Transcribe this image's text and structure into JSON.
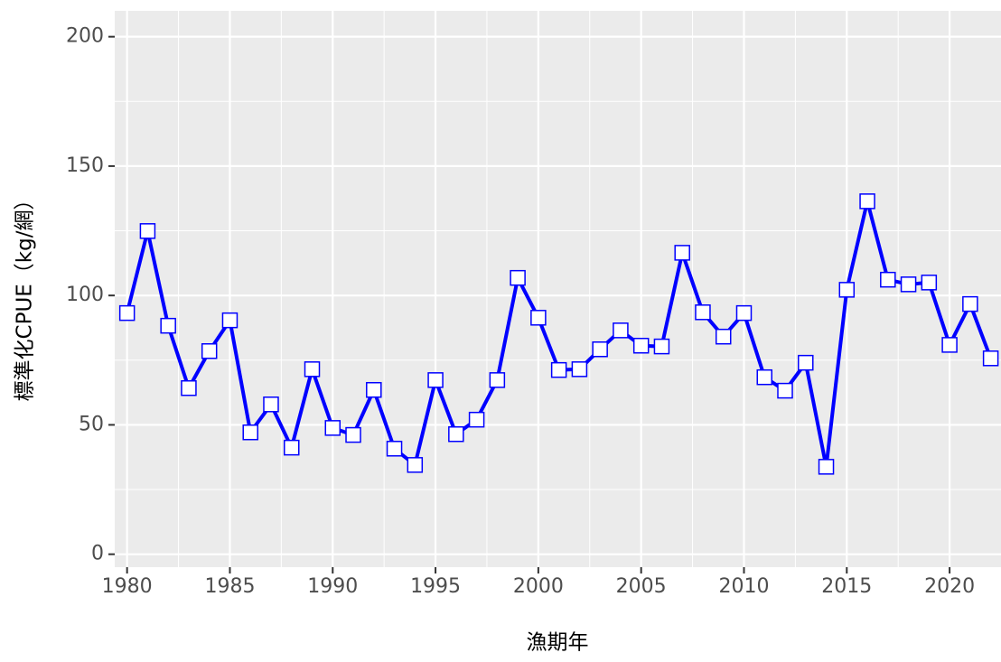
{
  "chart_data": {
    "type": "line",
    "x_label": "漁期年",
    "y_label": "標準化CPUE（kg/網）",
    "x": [
      1980,
      1981,
      1982,
      1983,
      1984,
      1985,
      1986,
      1987,
      1988,
      1989,
      1990,
      1991,
      1992,
      1993,
      1994,
      1995,
      1996,
      1997,
      1998,
      1999,
      2000,
      2001,
      2002,
      2003,
      2004,
      2005,
      2006,
      2007,
      2008,
      2009,
      2010,
      2011,
      2012,
      2013,
      2014,
      2015,
      2016,
      2017,
      2018,
      2019,
      2020,
      2021,
      2022
    ],
    "series": [
      {
        "color": "#0000ff",
        "marker_fill": "#ffffff",
        "values": [
          93.2,
          124.9,
          88.3,
          64.2,
          78.5,
          90.4,
          47.1,
          57.9,
          41.2,
          71.5,
          48.8,
          46.1,
          63.5,
          40.8,
          34.5,
          67.3,
          46.4,
          52.0,
          67.3,
          106.8,
          91.4,
          71.2,
          71.5,
          79.2,
          86.5,
          80.6,
          80.3,
          116.5,
          93.5,
          84.1,
          93.2,
          68.4,
          63.2,
          74.0,
          33.8,
          102.2,
          136.4,
          106.1,
          104.3,
          105.0,
          80.9,
          96.7,
          75.7
        ]
      }
    ],
    "xlim": [
      1979.4,
      2022.5
    ],
    "ylim": [
      -5,
      210
    ],
    "xticks": [
      1980,
      1985,
      1990,
      1995,
      2000,
      2005,
      2010,
      2015,
      2020
    ],
    "yticks": [
      0,
      50,
      100,
      150,
      200
    ],
    "x_minor_grid": [
      1982.5,
      1987.5,
      1992.5,
      1997.5,
      2002.5,
      2007.5,
      2012.5,
      2017.5
    ],
    "y_minor_grid": [
      25,
      75,
      125,
      175
    ],
    "grid": true
  }
}
